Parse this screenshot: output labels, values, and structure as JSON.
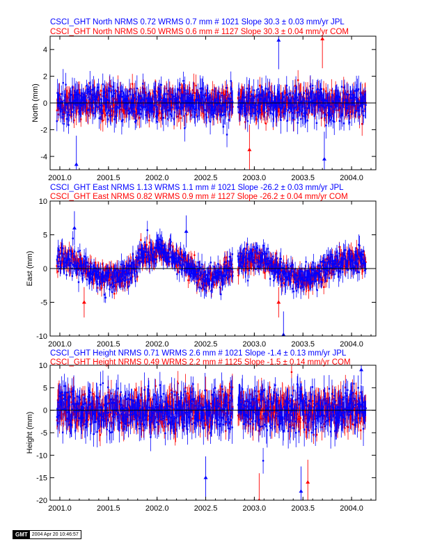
{
  "colors": {
    "jpl": "#0000ff",
    "com": "#ff0000",
    "zero_line": "#000000"
  },
  "stamp": {
    "logo": "GMT",
    "text": "2004 Apr 20 10:46:57"
  },
  "chart_data": [
    {
      "type": "scatter",
      "title_lines": [
        "CSCI_GHT North NRMS 0.72 WRMS  0.7 mm # 1021 Slope   30.3 ±  0.03 mm/yr JPL",
        "CSCI_GHT North NRMS 0.50 WRMS  0.6 mm # 1127 Slope   30.3 ±  0.04 mm/yr COM"
      ],
      "ylabel": "North (mm)",
      "xlim": [
        2000.9,
        2004.25
      ],
      "ylim": [
        -5,
        5
      ],
      "xticks": [
        "2001.0",
        "2001.5",
        "2002.0",
        "2002.5",
        "2003.0",
        "2003.5",
        "2004.0"
      ],
      "yticks": [
        "-4",
        "-2",
        "0",
        "2",
        "4"
      ],
      "series": [
        {
          "name": "JPL",
          "color": "#0000ff",
          "n_points": 1021,
          "scatter_sd": 0.7
        },
        {
          "name": "COM",
          "color": "#ff0000",
          "n_points": 1127,
          "scatter_sd": 0.6
        }
      ],
      "gap": [
        2002.78,
        2002.83
      ],
      "outliers": [
        {
          "x": 2001.17,
          "y": -4.6
        },
        {
          "x": 2002.95,
          "y": -3.5
        },
        {
          "x": 2003.25,
          "y": 4.7
        },
        {
          "x": 2003.7,
          "y": 4.8
        },
        {
          "x": 2003.72,
          "y": -4.2
        }
      ]
    },
    {
      "type": "scatter",
      "title_lines": [
        "CSCI_GHT East NRMS 1.13 WRMS  1.1 mm # 1021 Slope  -26.2 ±  0.03 mm/yr JPL",
        "CSCI_GHT East NRMS 0.82 WRMS  0.9 mm # 1127 Slope  -26.2 ±  0.04 mm/yr COM"
      ],
      "ylabel": "East (mm)",
      "xlim": [
        2000.9,
        2004.25
      ],
      "ylim": [
        -10,
        10
      ],
      "xticks": [
        "2001.0",
        "2001.5",
        "2002.0",
        "2002.5",
        "2003.0",
        "2003.5",
        "2004.0"
      ],
      "yticks": [
        "-10",
        "-5",
        "0",
        "5",
        "10"
      ],
      "series": [
        {
          "name": "JPL",
          "color": "#0000ff",
          "n_points": 1021,
          "scatter_sd": 1.1
        },
        {
          "name": "COM",
          "color": "#ff0000",
          "n_points": 1127,
          "scatter_sd": 0.9
        }
      ],
      "gap": [
        2002.78,
        2002.83
      ],
      "outliers": [
        {
          "x": 2001.15,
          "y": 6.0
        },
        {
          "x": 2001.25,
          "y": -5.0
        },
        {
          "x": 2002.3,
          "y": 5.5
        },
        {
          "x": 2003.25,
          "y": -5.0
        },
        {
          "x": 2003.3,
          "y": -9.8
        }
      ]
    },
    {
      "type": "scatter",
      "title_lines": [
        "CSCI_GHT Height NRMS 0.71 WRMS  2.6 mm # 1021 Slope   -1.4 ±  0.13 mm/yr JPL",
        "CSCI_GHT Height NRMS 0.49 WRMS  2.2 mm # 1125 Slope   -1.5 ±  0.14 mm/yr COM"
      ],
      "ylabel": "Height (mm)",
      "xlim": [
        2000.9,
        2004.25
      ],
      "ylim": [
        -20,
        10
      ],
      "xticks": [
        "2001.0",
        "2001.5",
        "2002.0",
        "2002.5",
        "2003.0",
        "2003.5",
        "2004.0"
      ],
      "yticks": [
        "-20",
        "-15",
        "-10",
        "-5",
        "0",
        "5",
        "10"
      ],
      "series": [
        {
          "name": "JPL",
          "color": "#0000ff",
          "n_points": 1021,
          "scatter_sd": 2.6
        },
        {
          "name": "COM",
          "color": "#ff0000",
          "n_points": 1125,
          "scatter_sd": 2.2
        }
      ],
      "gap": [
        2002.78,
        2002.83
      ],
      "outliers": [
        {
          "x": 2002.5,
          "y": -15.0
        },
        {
          "x": 2003.05,
          "y": -20.0
        },
        {
          "x": 2003.48,
          "y": -18.0
        },
        {
          "x": 2003.55,
          "y": -16.0
        },
        {
          "x": 2004.1,
          "y": 9.0
        }
      ]
    }
  ]
}
